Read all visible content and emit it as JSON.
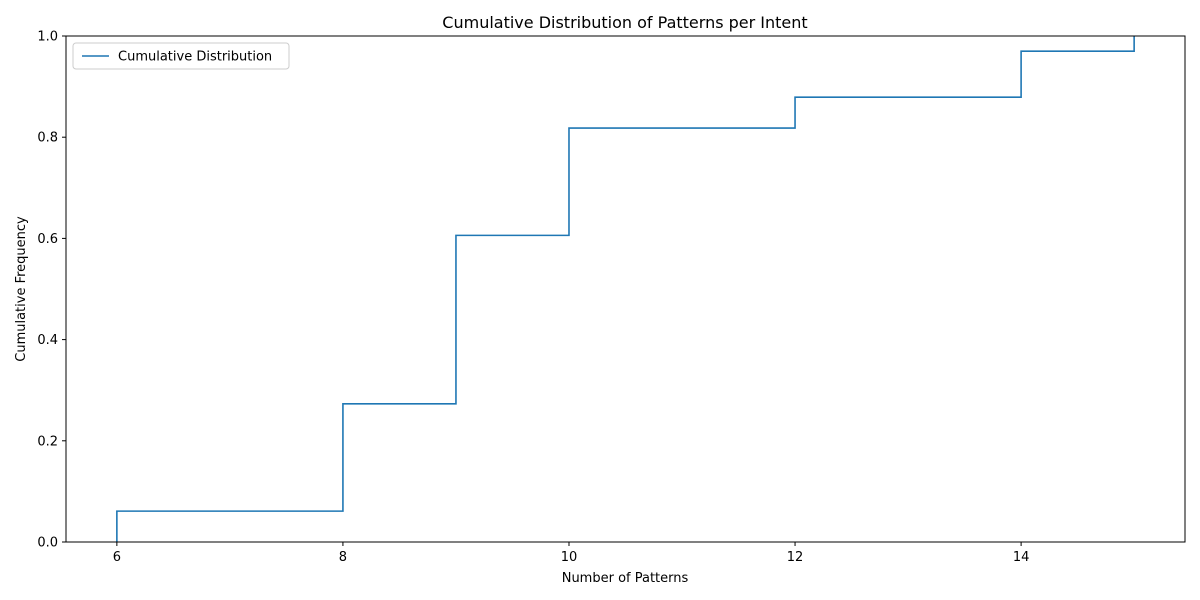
{
  "chart_data": {
    "type": "line",
    "drawstyle": "steps-post",
    "title": "Cumulative Distribution of Patterns per Intent",
    "xlabel": "Number of Patterns",
    "ylabel": "Cumulative Frequency",
    "xlim": [
      5.55,
      15.45
    ],
    "ylim": [
      0,
      1.0
    ],
    "x_ticks": [
      6,
      8,
      10,
      12,
      14
    ],
    "x_tick_labels": [
      "6",
      "8",
      "10",
      "12",
      "14"
    ],
    "y_ticks": [
      0.0,
      0.2,
      0.4,
      0.6,
      0.8,
      1.0
    ],
    "y_tick_labels": [
      "0.0",
      "0.2",
      "0.4",
      "0.6",
      "0.8",
      "1.0"
    ],
    "grid": false,
    "legend": "upper-left",
    "series": [
      {
        "name": "Cumulative Distribution",
        "color": "#1f77b4",
        "x": [
          6,
          6,
          8,
          9,
          10,
          12,
          14,
          15
        ],
        "y": [
          0.0,
          0.061,
          0.273,
          0.606,
          0.818,
          0.879,
          0.97,
          1.0
        ]
      }
    ]
  }
}
